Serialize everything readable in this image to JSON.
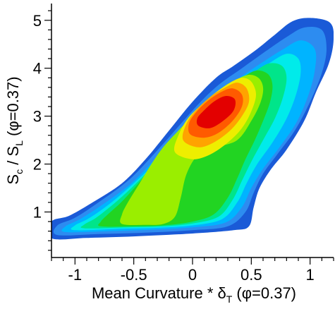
{
  "chart_data": {
    "type": "heatmap",
    "title": "",
    "xlabel": {
      "pre": "Mean Curvature * δ",
      "sub": "T",
      "post": " (φ=0.37)"
    },
    "ylabel": {
      "s1": "S",
      "sub1": "c",
      "mid": " / S",
      "sub2": "L",
      "post": " (φ=0.37)"
    },
    "xlim": [
      -1.2,
      1.2
    ],
    "ylim": [
      0.05,
      5.35
    ],
    "xticks": [
      {
        "value": -1,
        "label": "-1"
      },
      {
        "value": -0.5,
        "label": "-0.5"
      },
      {
        "value": 0,
        "label": "0"
      },
      {
        "value": 0.5,
        "label": "0.5"
      },
      {
        "value": 1,
        "label": "1"
      }
    ],
    "yticks": [
      {
        "value": 1,
        "label": "1"
      },
      {
        "value": 2,
        "label": "2"
      },
      {
        "value": 3,
        "label": "3"
      },
      {
        "value": 4,
        "label": "4"
      },
      {
        "value": 5,
        "label": "5"
      }
    ],
    "grid": false,
    "colors": [
      "#1a5ad7",
      "#2d8cf0",
      "#00b4ff",
      "#00ebea",
      "#00e58a",
      "#22d422",
      "#9aee00",
      "#eeee00",
      "#ffa300",
      "#ff5a00",
      "#e30000"
    ],
    "levels": [
      {
        "level": 1,
        "color": "#1a5ad7",
        "points": [
          [
            -1.2,
            0.45
          ],
          [
            -0.9,
            0.46
          ],
          [
            -0.5,
            0.49
          ],
          [
            0.0,
            0.55
          ],
          [
            0.35,
            0.62
          ],
          [
            0.48,
            0.7
          ],
          [
            0.52,
            1.1
          ],
          [
            0.57,
            1.5
          ],
          [
            0.67,
            1.9
          ],
          [
            0.8,
            2.3
          ],
          [
            0.95,
            2.9
          ],
          [
            1.05,
            3.5
          ],
          [
            1.16,
            4.1
          ],
          [
            1.2,
            4.6
          ],
          [
            1.17,
            4.95
          ],
          [
            1.0,
            5.05
          ],
          [
            0.85,
            4.98
          ],
          [
            0.7,
            4.7
          ],
          [
            0.55,
            4.4
          ],
          [
            0.35,
            4.05
          ],
          [
            0.2,
            3.8
          ],
          [
            0.0,
            3.3
          ],
          [
            -0.2,
            2.7
          ],
          [
            -0.4,
            2.1
          ],
          [
            -0.6,
            1.6
          ],
          [
            -0.85,
            1.2
          ],
          [
            -1.05,
            0.92
          ],
          [
            -1.2,
            0.8
          ]
        ]
      },
      {
        "level": 2,
        "color": "#2d8cf0",
        "points": [
          [
            -1.15,
            0.52
          ],
          [
            -0.8,
            0.54
          ],
          [
            -0.4,
            0.57
          ],
          [
            0.0,
            0.62
          ],
          [
            0.3,
            0.7
          ],
          [
            0.45,
            1.0
          ],
          [
            0.52,
            1.4
          ],
          [
            0.6,
            1.8
          ],
          [
            0.72,
            2.2
          ],
          [
            0.87,
            2.7
          ],
          [
            1.0,
            3.3
          ],
          [
            1.1,
            3.9
          ],
          [
            1.14,
            4.4
          ],
          [
            1.1,
            4.8
          ],
          [
            0.95,
            4.85
          ],
          [
            0.8,
            4.65
          ],
          [
            0.62,
            4.35
          ],
          [
            0.42,
            4.0
          ],
          [
            0.22,
            3.65
          ],
          [
            0.05,
            3.25
          ],
          [
            -0.15,
            2.7
          ],
          [
            -0.35,
            2.15
          ],
          [
            -0.55,
            1.65
          ],
          [
            -0.8,
            1.2
          ],
          [
            -1.0,
            0.88
          ],
          [
            -1.15,
            0.72
          ]
        ]
      },
      {
        "level": 3,
        "color": "#00b4ff",
        "points": [
          [
            -1.08,
            0.58
          ],
          [
            -0.7,
            0.6
          ],
          [
            -0.35,
            0.63
          ],
          [
            0.0,
            0.68
          ],
          [
            0.28,
            0.78
          ],
          [
            0.42,
            1.1
          ],
          [
            0.5,
            1.5
          ],
          [
            0.6,
            1.9
          ],
          [
            0.74,
            2.35
          ],
          [
            0.88,
            2.85
          ],
          [
            0.98,
            3.4
          ],
          [
            1.04,
            3.95
          ],
          [
            1.04,
            4.4
          ],
          [
            0.92,
            4.58
          ],
          [
            0.76,
            4.38
          ],
          [
            0.58,
            4.1
          ],
          [
            0.4,
            3.8
          ],
          [
            0.22,
            3.5
          ],
          [
            0.05,
            3.1
          ],
          [
            -0.12,
            2.6
          ],
          [
            -0.32,
            2.1
          ],
          [
            -0.52,
            1.6
          ],
          [
            -0.75,
            1.18
          ],
          [
            -0.95,
            0.86
          ],
          [
            -1.08,
            0.7
          ]
        ]
      },
      {
        "level": 4,
        "color": "#00ebea",
        "points": [
          [
            -1.0,
            0.62
          ],
          [
            -0.6,
            0.65
          ],
          [
            -0.3,
            0.67
          ],
          [
            0.0,
            0.72
          ],
          [
            0.25,
            0.85
          ],
          [
            0.38,
            1.2
          ],
          [
            0.46,
            1.6
          ],
          [
            0.55,
            2.0
          ],
          [
            0.68,
            2.45
          ],
          [
            0.8,
            2.95
          ],
          [
            0.88,
            3.45
          ],
          [
            0.92,
            3.9
          ],
          [
            0.9,
            4.2
          ],
          [
            0.8,
            4.3
          ],
          [
            0.65,
            4.1
          ],
          [
            0.5,
            3.85
          ],
          [
            0.35,
            3.6
          ],
          [
            0.18,
            3.3
          ],
          [
            0.02,
            2.95
          ],
          [
            -0.12,
            2.5
          ],
          [
            -0.3,
            2.05
          ],
          [
            -0.5,
            1.6
          ],
          [
            -0.7,
            1.18
          ],
          [
            -0.88,
            0.87
          ],
          [
            -1.0,
            0.72
          ]
        ]
      },
      {
        "level": 5,
        "color": "#00e58a",
        "points": [
          [
            -0.92,
            0.66
          ],
          [
            -0.55,
            0.68
          ],
          [
            -0.25,
            0.7
          ],
          [
            0.0,
            0.76
          ],
          [
            0.22,
            0.9
          ],
          [
            0.34,
            1.25
          ],
          [
            0.42,
            1.65
          ],
          [
            0.5,
            2.05
          ],
          [
            0.6,
            2.5
          ],
          [
            0.7,
            2.95
          ],
          [
            0.77,
            3.4
          ],
          [
            0.8,
            3.8
          ],
          [
            0.76,
            4.05
          ],
          [
            0.65,
            4.1
          ],
          [
            0.52,
            3.92
          ],
          [
            0.38,
            3.7
          ],
          [
            0.22,
            3.42
          ],
          [
            0.08,
            3.1
          ],
          [
            -0.06,
            2.7
          ],
          [
            -0.2,
            2.3
          ],
          [
            -0.36,
            1.9
          ],
          [
            -0.52,
            1.5
          ],
          [
            -0.68,
            1.15
          ],
          [
            -0.82,
            0.88
          ],
          [
            -0.92,
            0.74
          ]
        ]
      },
      {
        "level": 6,
        "color": "#22d422",
        "points": [
          [
            -0.78,
            0.7
          ],
          [
            -0.5,
            0.7
          ],
          [
            -0.25,
            0.72
          ],
          [
            0.0,
            0.8
          ],
          [
            0.18,
            0.95
          ],
          [
            0.3,
            1.3
          ],
          [
            0.38,
            1.7
          ],
          [
            0.45,
            2.1
          ],
          [
            0.53,
            2.5
          ],
          [
            0.6,
            2.9
          ],
          [
            0.66,
            3.3
          ],
          [
            0.68,
            3.65
          ],
          [
            0.64,
            3.88
          ],
          [
            0.54,
            3.95
          ],
          [
            0.42,
            3.8
          ],
          [
            0.3,
            3.6
          ],
          [
            0.16,
            3.35
          ],
          [
            0.04,
            3.05
          ],
          [
            -0.08,
            2.7
          ],
          [
            -0.2,
            2.35
          ],
          [
            -0.32,
            2.0
          ],
          [
            -0.46,
            1.6
          ],
          [
            -0.6,
            1.22
          ],
          [
            -0.72,
            0.95
          ],
          [
            -0.78,
            0.8
          ]
        ]
      },
      {
        "level": 7,
        "color": "#9aee00",
        "points": [
          [
            -0.6,
            0.75
          ],
          [
            -0.4,
            0.73
          ],
          [
            -0.25,
            0.75
          ],
          [
            -0.15,
            0.9
          ],
          [
            -0.1,
            1.3
          ],
          [
            -0.05,
            1.8
          ],
          [
            0.05,
            2.2
          ],
          [
            0.2,
            2.35
          ],
          [
            0.38,
            2.5
          ],
          [
            0.5,
            2.9
          ],
          [
            0.58,
            3.3
          ],
          [
            0.6,
            3.6
          ],
          [
            0.56,
            3.8
          ],
          [
            0.47,
            3.86
          ],
          [
            0.36,
            3.74
          ],
          [
            0.25,
            3.55
          ],
          [
            0.12,
            3.3
          ],
          [
            0.0,
            3.0
          ],
          [
            -0.12,
            2.7
          ],
          [
            -0.25,
            2.35
          ],
          [
            -0.35,
            2.0
          ],
          [
            -0.45,
            1.6
          ],
          [
            -0.55,
            1.2
          ],
          [
            -0.6,
            0.95
          ]
        ]
      },
      {
        "level": 8,
        "color": "#eeee00",
        "points": [
          [
            -0.15,
            2.25
          ],
          [
            0.0,
            2.1
          ],
          [
            0.15,
            2.2
          ],
          [
            0.3,
            2.45
          ],
          [
            0.42,
            2.75
          ],
          [
            0.5,
            3.1
          ],
          [
            0.54,
            3.45
          ],
          [
            0.5,
            3.72
          ],
          [
            0.42,
            3.8
          ],
          [
            0.32,
            3.7
          ],
          [
            0.2,
            3.5
          ],
          [
            0.08,
            3.25
          ],
          [
            -0.04,
            2.95
          ],
          [
            -0.12,
            2.6
          ]
        ]
      },
      {
        "level": 9,
        "color": "#ffa300",
        "points": [
          [
            -0.08,
            2.5
          ],
          [
            0.05,
            2.35
          ],
          [
            0.18,
            2.45
          ],
          [
            0.32,
            2.7
          ],
          [
            0.42,
            3.0
          ],
          [
            0.48,
            3.3
          ],
          [
            0.46,
            3.58
          ],
          [
            0.38,
            3.7
          ],
          [
            0.28,
            3.6
          ],
          [
            0.16,
            3.42
          ],
          [
            0.04,
            3.15
          ],
          [
            -0.05,
            2.85
          ]
        ]
      },
      {
        "level": 10,
        "color": "#ff5a00",
        "points": [
          [
            -0.02,
            2.62
          ],
          [
            0.1,
            2.55
          ],
          [
            0.22,
            2.65
          ],
          [
            0.34,
            2.9
          ],
          [
            0.42,
            3.2
          ],
          [
            0.42,
            3.45
          ],
          [
            0.34,
            3.58
          ],
          [
            0.24,
            3.5
          ],
          [
            0.13,
            3.32
          ],
          [
            0.03,
            3.08
          ],
          [
            -0.03,
            2.85
          ]
        ]
      },
      {
        "level": 11,
        "color": "#e30000",
        "points": [
          [
            0.05,
            2.8
          ],
          [
            0.15,
            2.75
          ],
          [
            0.26,
            2.9
          ],
          [
            0.35,
            3.12
          ],
          [
            0.36,
            3.35
          ],
          [
            0.28,
            3.42
          ],
          [
            0.18,
            3.3
          ],
          [
            0.09,
            3.1
          ],
          [
            0.04,
            2.95
          ]
        ]
      }
    ]
  }
}
